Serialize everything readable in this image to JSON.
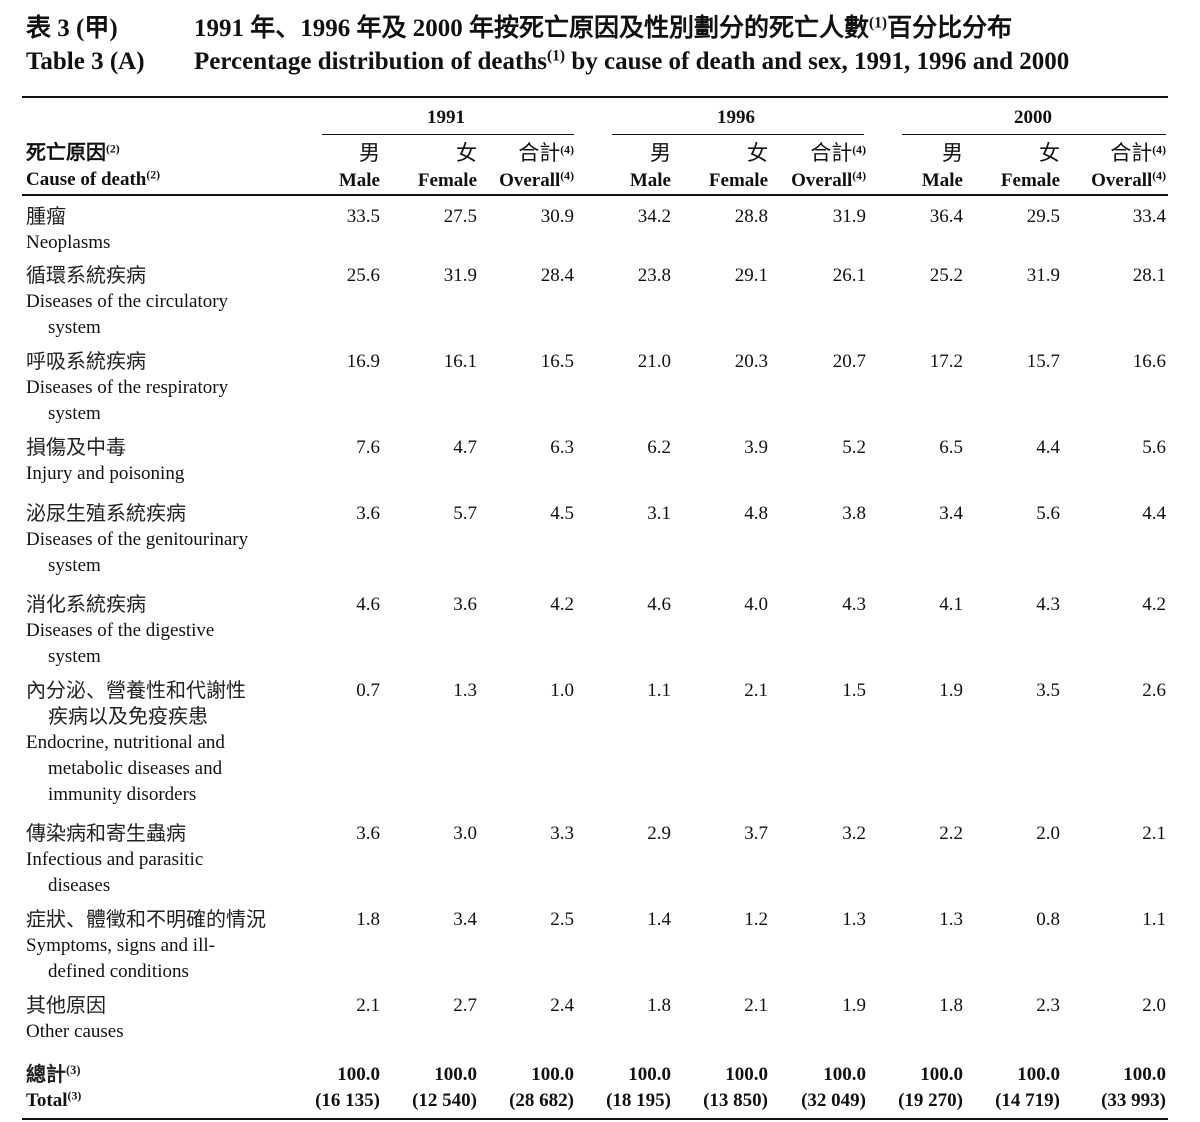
{
  "title": {
    "zh_number": "表 3 (甲)",
    "zh_text": "1991 年、1996 年及 2000 年按死亡原因及性別劃分的死亡人數",
    "zh_sup": "(1)",
    "zh_text_after": "百分比分布",
    "en_number": "Table 3 (A)",
    "en_text": "Percentage distribution of deaths",
    "en_sup": "(1)",
    "en_text_after": " by cause of death and sex, 1991, 1996 and 2000"
  },
  "header": {
    "years": [
      "1991",
      "1996",
      "2000"
    ],
    "cause_zh": "死亡原因",
    "cause_en": "Cause of death",
    "cause_sup": "(2)",
    "male_zh": "男",
    "male_en": "Male",
    "female_zh": "女",
    "female_en": "Female",
    "overall_zh": "合計",
    "overall_en": "Overall",
    "overall_sup": "(4)"
  },
  "rows": [
    {
      "zh": [
        "腫瘤"
      ],
      "en": [
        "Neoplasms"
      ],
      "values": [
        "33.5",
        "27.5",
        "30.9",
        "34.2",
        "28.8",
        "31.9",
        "36.4",
        "29.5",
        "33.4"
      ]
    },
    {
      "zh": [
        "循環系統疾病"
      ],
      "en": [
        "Diseases of the circulatory",
        "system"
      ],
      "values": [
        "25.6",
        "31.9",
        "28.4",
        "23.8",
        "29.1",
        "26.1",
        "25.2",
        "31.9",
        "28.1"
      ]
    },
    {
      "zh": [
        "呼吸系統疾病"
      ],
      "en": [
        "Diseases of the respiratory",
        "system"
      ],
      "values": [
        "16.9",
        "16.1",
        "16.5",
        "21.0",
        "20.3",
        "20.7",
        "17.2",
        "15.7",
        "16.6"
      ]
    },
    {
      "zh": [
        "損傷及中毒"
      ],
      "en": [
        "Injury and poisoning"
      ],
      "values": [
        "7.6",
        "4.7",
        "6.3",
        "6.2",
        "3.9",
        "5.2",
        "6.5",
        "4.4",
        "5.6"
      ]
    },
    {
      "zh": [
        "泌尿生殖系統疾病"
      ],
      "en": [
        "Diseases of the genitourinary",
        "system"
      ],
      "values": [
        "3.6",
        "5.7",
        "4.5",
        "3.1",
        "4.8",
        "3.8",
        "3.4",
        "5.6",
        "4.4"
      ]
    },
    {
      "zh": [
        "消化系統疾病"
      ],
      "en": [
        "Diseases of the digestive",
        "system"
      ],
      "values": [
        "4.6",
        "3.6",
        "4.2",
        "4.6",
        "4.0",
        "4.3",
        "4.1",
        "4.3",
        "4.2"
      ]
    },
    {
      "zh": [
        "內分泌、營養性和代謝性",
        "疾病以及免疫疾患"
      ],
      "en": [
        "Endocrine, nutritional and",
        "metabolic diseases and",
        "immunity disorders"
      ],
      "values": [
        "0.7",
        "1.3",
        "1.0",
        "1.1",
        "2.1",
        "1.5",
        "1.9",
        "3.5",
        "2.6"
      ]
    },
    {
      "zh": [
        "傳染病和寄生蟲病"
      ],
      "en": [
        "Infectious and parasitic",
        "diseases"
      ],
      "values": [
        "3.6",
        "3.0",
        "3.3",
        "2.9",
        "3.7",
        "3.2",
        "2.2",
        "2.0",
        "2.1"
      ]
    },
    {
      "zh": [
        "症狀、體徵和不明確的情況"
      ],
      "en": [
        "Symptoms, signs and ill-",
        "defined conditions"
      ],
      "values": [
        "1.8",
        "3.4",
        "2.5",
        "1.4",
        "1.2",
        "1.3",
        "1.3",
        "0.8",
        "1.1"
      ]
    },
    {
      "zh": [
        "其他原因"
      ],
      "en": [
        "Other causes"
      ],
      "values": [
        "2.1",
        "2.7",
        "2.4",
        "1.8",
        "2.1",
        "1.9",
        "1.8",
        "2.3",
        "2.0"
      ]
    }
  ],
  "total": {
    "zh": "總計",
    "en": "Total",
    "sup": "(3)",
    "values": [
      "100.0",
      "100.0",
      "100.0",
      "100.0",
      "100.0",
      "100.0",
      "100.0",
      "100.0",
      "100.0"
    ],
    "counts": [
      "(16 135)",
      "(12 540)",
      "(28 682)",
      "(18 195)",
      "(13 850)",
      "(32 049)",
      "(19 270)",
      "(14 719)",
      "(33 993)"
    ]
  }
}
